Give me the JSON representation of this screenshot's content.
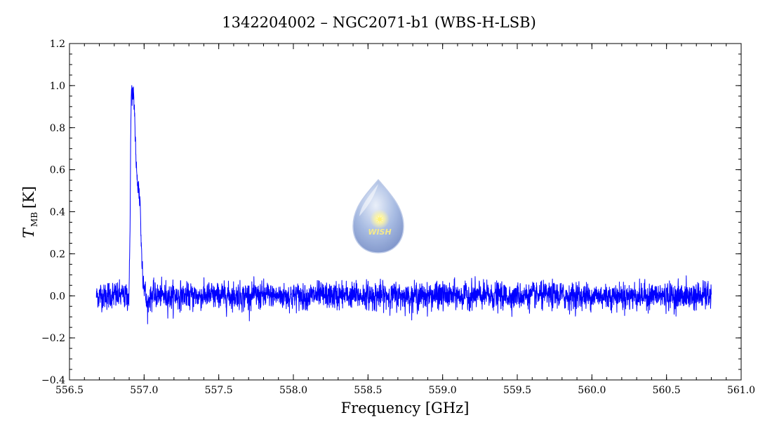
{
  "chart_data": {
    "type": "line",
    "title": "1342204002 – NGC2071-b1 (WBS-H-LSB)",
    "xlabel": "Frequency [GHz]",
    "ylabel_main": "T",
    "ylabel_sub": "MB",
    "ylabel_unit": "[K]",
    "xlim": [
      556.5,
      561.0
    ],
    "ylim": [
      -0.4,
      1.2
    ],
    "xticks": [
      "556.5",
      "557.0",
      "557.5",
      "558.0",
      "558.5",
      "559.0",
      "559.5",
      "560.0",
      "560.5",
      "561.0"
    ],
    "yticks": [
      "−0.4",
      "−0.2",
      "0.0",
      "0.2",
      "0.4",
      "0.6",
      "0.8",
      "1.0",
      "1.2"
    ],
    "grid": false,
    "series": [
      {
        "color": "#0000ff",
        "x_range": [
          556.68,
          560.8
        ],
        "noise_rms": 0.04,
        "line_profile": [
          [
            556.68,
            0.0
          ],
          [
            556.9,
            0.0
          ],
          [
            556.905,
            0.3
          ],
          [
            556.91,
            0.75
          ],
          [
            556.915,
            0.98
          ],
          [
            556.925,
            0.95
          ],
          [
            556.935,
            0.9
          ],
          [
            556.94,
            0.78
          ],
          [
            556.95,
            0.56
          ],
          [
            556.96,
            0.53
          ],
          [
            556.97,
            0.47
          ],
          [
            556.975,
            0.43
          ],
          [
            556.98,
            0.25
          ],
          [
            556.985,
            0.18
          ],
          [
            556.995,
            0.08
          ],
          [
            557.01,
            0.0
          ],
          [
            557.02,
            -0.05
          ],
          [
            557.04,
            0.0
          ],
          [
            560.8,
            0.0
          ]
        ]
      }
    ]
  },
  "logo": {
    "text": "WISH",
    "colors": {
      "body": "#8fa8d8",
      "highlight": "#dfe7f5",
      "star": "#fff27a"
    }
  }
}
